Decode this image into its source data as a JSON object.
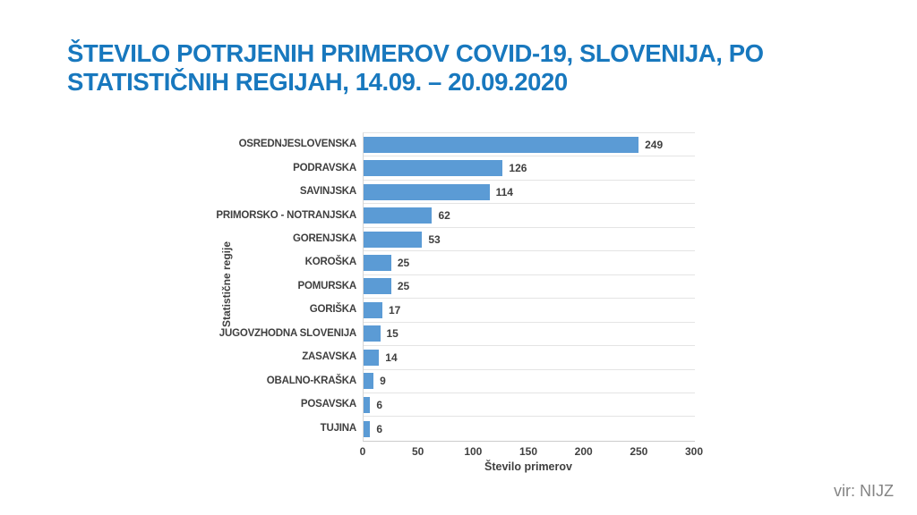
{
  "title": {
    "line1": "ŠTEVILO POTRJENIH PRIMEROV COVID-19, SLOVENIJA, PO",
    "line2": "STATISTIČNIH REGIJAH, 14.09. – 20.09.2020",
    "color": "#1878BE"
  },
  "source": "vir: NIJZ",
  "chart_data": {
    "type": "bar",
    "orientation": "horizontal",
    "title": "ŠTEVILO POTRJENIH PRIMEROV COVID-19, SLOVENIJA, PO STATISTIČNIH REGIJAH, 14.09. – 20.09.2020",
    "categories": [
      "OSREDNJESLOVENSKA",
      "PODRAVSKA",
      "SAVINJSKA",
      "PRIMORSKO - NOTRANJSKA",
      "GORENJSKA",
      "KOROŠKA",
      "POMURSKA",
      "GORIŠKA",
      "JUGOVZHODNA SLOVENIJA",
      "ZASAVSKA",
      "OBALNO-KRAŠKA",
      "POSAVSKA",
      "TUJINA"
    ],
    "values": [
      249,
      126,
      114,
      62,
      53,
      25,
      25,
      17,
      15,
      14,
      9,
      6,
      6
    ],
    "xlabel": "Število primerov",
    "ylabel": "Statistične regije",
    "xlim": [
      0,
      300
    ],
    "x_ticks": [
      0,
      50,
      100,
      150,
      200,
      250,
      300
    ],
    "grid": "horizontal-row-separators",
    "legend": "none",
    "bar_color": "#5B9BD5",
    "data_labels": "outside-end"
  }
}
